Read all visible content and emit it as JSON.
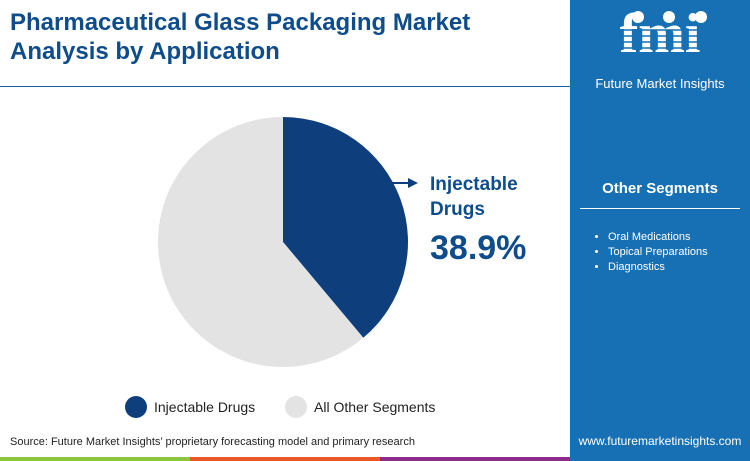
{
  "title": "Pharmaceutical Glass Packaging Market Analysis by Application",
  "brand": {
    "name": "Future Market Insights",
    "logo_text": "fmi",
    "url": "www.futuremarketinsights.com"
  },
  "other_segments": {
    "heading": "Other Segments",
    "items": [
      "Oral Medications",
      "Topical Preparations",
      "Diagnostics"
    ]
  },
  "chart_data": {
    "type": "pie",
    "slices": [
      {
        "name": "Injectable Drugs",
        "value": 38.9,
        "color": "#0e3f7c"
      },
      {
        "name": "All Other Segments",
        "value": 61.1,
        "color": "#e3e3e3"
      }
    ],
    "callout": {
      "label": "Injectable Drugs",
      "value": "38.9%"
    },
    "legend": "bottom"
  },
  "source": "Source: Future Market Insights’ proprietary forecasting model and primary research",
  "colors": {
    "panel": "#1770b4",
    "title": "#0e4c8c",
    "stripes": [
      "#8cc63f",
      "#e8582a",
      "#8e2c8c"
    ]
  }
}
